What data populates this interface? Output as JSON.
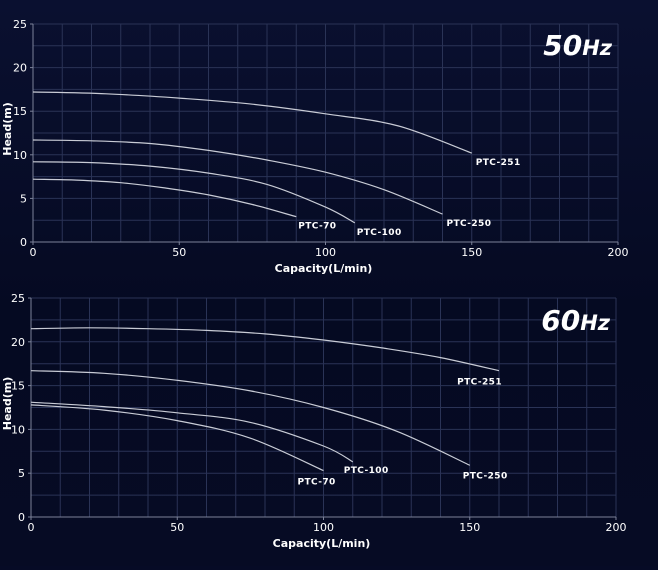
{
  "chart_data": [
    {
      "type": "line",
      "frequency": {
        "value": "50",
        "unit": "Hz"
      },
      "xlabel": "Capacity(L/min)",
      "ylabel": "Head(m)",
      "xlim": [
        0,
        200
      ],
      "ylim": [
        0,
        25
      ],
      "xticks": [
        0,
        50,
        100,
        150,
        200
      ],
      "yticks": [
        0,
        5,
        10,
        15,
        20,
        25
      ],
      "grid": true,
      "series": [
        {
          "name": "PTC-251",
          "x": [
            0,
            25,
            50,
            75,
            100,
            125,
            150
          ],
          "y": [
            17.2,
            17.0,
            16.5,
            15.8,
            14.7,
            13.3,
            10.2
          ]
        },
        {
          "name": "PTC-250",
          "x": [
            0,
            20,
            40,
            60,
            80,
            100,
            120,
            140
          ],
          "y": [
            11.7,
            11.6,
            11.3,
            10.5,
            9.4,
            8.0,
            6.0,
            3.2
          ]
        },
        {
          "name": "PTC-100",
          "x": [
            0,
            20,
            40,
            60,
            80,
            100,
            110
          ],
          "y": [
            9.2,
            9.1,
            8.7,
            7.9,
            6.6,
            4.0,
            2.2
          ]
        },
        {
          "name": "PTC-70",
          "x": [
            0,
            15,
            30,
            45,
            60,
            75,
            90
          ],
          "y": [
            7.2,
            7.1,
            6.8,
            6.2,
            5.4,
            4.3,
            2.9
          ]
        }
      ]
    },
    {
      "type": "line",
      "frequency": {
        "value": "60",
        "unit": "Hz"
      },
      "xlabel": "Capacity(L/min)",
      "ylabel": "Head(m)",
      "xlim": [
        0,
        200
      ],
      "ylim": [
        0,
        25
      ],
      "xticks": [
        0,
        50,
        100,
        150,
        200
      ],
      "yticks": [
        0,
        5,
        10,
        15,
        20,
        25
      ],
      "grid": true,
      "series": [
        {
          "name": "PTC-251",
          "x": [
            0,
            20,
            40,
            60,
            80,
            100,
            120,
            140,
            160
          ],
          "y": [
            21.5,
            21.6,
            21.5,
            21.3,
            20.9,
            20.2,
            19.3,
            18.2,
            16.7
          ]
        },
        {
          "name": "PTC-250",
          "x": [
            0,
            25,
            50,
            75,
            100,
            125,
            150
          ],
          "y": [
            16.7,
            16.4,
            15.6,
            14.4,
            12.5,
            9.8,
            5.9
          ]
        },
        {
          "name": "PTC-100",
          "x": [
            0,
            25,
            50,
            75,
            100,
            110
          ],
          "y": [
            13.1,
            12.6,
            11.9,
            10.8,
            8.1,
            6.3
          ]
        },
        {
          "name": "PTC-70",
          "x": [
            0,
            25,
            50,
            75,
            100
          ],
          "y": [
            12.8,
            12.2,
            11.0,
            9.0,
            5.3
          ]
        }
      ]
    }
  ]
}
